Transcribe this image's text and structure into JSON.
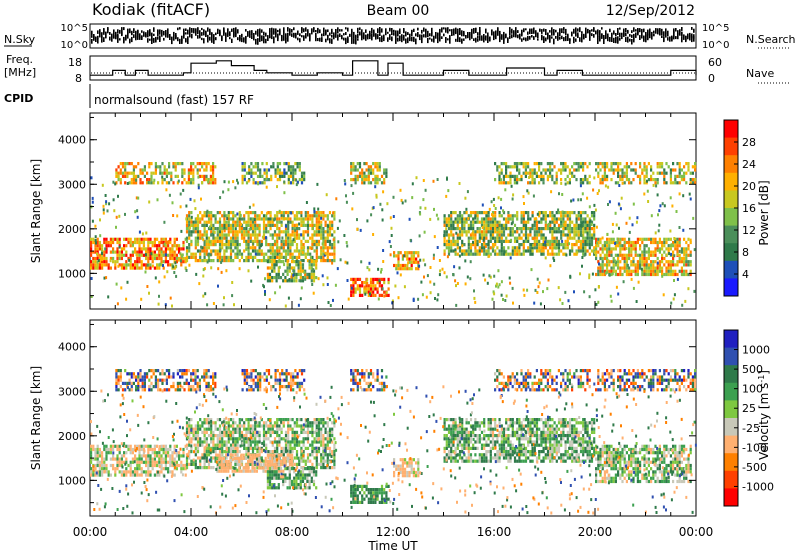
{
  "header": {
    "station": "Kodiak (fitACF)",
    "beam": "Beam 00",
    "date": "12/Sep/2012"
  },
  "left_labels": {
    "nsky": "N.Sky",
    "freq_line1": "Freq.",
    "freq_line2": "[MHz]",
    "cpid": "CPID"
  },
  "right_labels": {
    "nsearch": "N.Search",
    "nave": "Nave"
  },
  "strip_ticks": {
    "nsky_top": "10^5",
    "nsky_bottom": "10^0",
    "freq_top": "18",
    "freq_bottom": "8",
    "nave_top": "60",
    "nave_bottom": "0"
  },
  "cpid_text": "normalsound (fast) 157 RF",
  "colors": {
    "power": [
      "#1a1aff",
      "#1e4fb8",
      "#2f7a4a",
      "#4b8f5a",
      "#7fc04a",
      "#c8c820",
      "#ffb000",
      "#ff8000",
      "#ff4000",
      "#ff0000"
    ],
    "velocity": [
      "#ff0000",
      "#ff4000",
      "#ff8000",
      "#ffb070",
      "#c8c8b8",
      "#7ec840",
      "#3ca050",
      "#2f7a4a",
      "#3050b0",
      "#2020c0"
    ]
  },
  "chart_data": [
    {
      "type": "heatmap",
      "name": "power",
      "xlabel": "",
      "ylabel": "Slant Range [km]",
      "x_ticks": [
        "00:00",
        "04:00",
        "08:00",
        "12:00",
        "16:00",
        "20:00",
        "00:00"
      ],
      "y_ticks": [
        "1000",
        "2000",
        "3000",
        "4000"
      ],
      "ylim": [
        200,
        4600
      ],
      "colorbar_label": "Power [dB]",
      "colorbar_ticks": [
        "28",
        "24",
        "20",
        "16",
        "12",
        "8",
        "4"
      ],
      "colorbar_range": [
        0,
        30
      ],
      "x_unit": "hours UT",
      "regions": [
        {
          "t0": 0.0,
          "t1": 3.8,
          "r0": 1150,
          "r1": 1800,
          "v": 22
        },
        {
          "t0": 3.8,
          "t1": 9.7,
          "r0": 1300,
          "r1": 2400,
          "v": 16
        },
        {
          "t0": 7.0,
          "t1": 9.0,
          "r0": 800,
          "r1": 1300,
          "v": 14
        },
        {
          "t0": 10.3,
          "t1": 11.8,
          "r0": 500,
          "r1": 900,
          "v": 24
        },
        {
          "t0": 12.0,
          "t1": 13.0,
          "r0": 1100,
          "r1": 1500,
          "v": 20
        },
        {
          "t0": 14.0,
          "t1": 20.0,
          "r0": 1400,
          "r1": 2400,
          "v": 14
        },
        {
          "t0": 20.0,
          "t1": 23.8,
          "r0": 1000,
          "r1": 1800,
          "v": 18
        },
        {
          "t0": 1.0,
          "t1": 5.0,
          "r0": 3000,
          "r1": 3500,
          "v": 18
        },
        {
          "t0": 6.0,
          "t1": 8.5,
          "r0": 3000,
          "r1": 3500,
          "v": 12
        },
        {
          "t0": 10.3,
          "t1": 11.7,
          "r0": 3000,
          "r1": 3500,
          "v": 16
        },
        {
          "t0": 16.0,
          "t1": 19.8,
          "r0": 3000,
          "r1": 3500,
          "v": 14
        },
        {
          "t0": 20.0,
          "t1": 24.0,
          "r0": 3000,
          "r1": 3500,
          "v": 16
        }
      ]
    },
    {
      "type": "heatmap",
      "name": "velocity",
      "xlabel": "Time UT",
      "ylabel": "Slant Range [km]",
      "x_ticks": [
        "00:00",
        "04:00",
        "08:00",
        "12:00",
        "16:00",
        "20:00",
        "00:00"
      ],
      "y_ticks": [
        "1000",
        "2000",
        "3000",
        "4000"
      ],
      "ylim": [
        200,
        4600
      ],
      "colorbar_label": "Velocity [m s^-1]",
      "colorbar_ticks": [
        "1000",
        "500",
        "100",
        "25",
        "-25",
        "-100",
        "-500",
        "-1000"
      ],
      "x_unit": "hours UT",
      "regions": [
        {
          "t0": 0.0,
          "t1": 3.8,
          "r0": 1150,
          "r1": 1800,
          "v": -60
        },
        {
          "t0": 3.8,
          "t1": 9.7,
          "r0": 1300,
          "r1": 2400,
          "v": 0
        },
        {
          "t0": 5.0,
          "t1": 8.0,
          "r0": 1200,
          "r1": 1600,
          "v": -200
        },
        {
          "t0": 7.0,
          "t1": 9.0,
          "r0": 800,
          "r1": 1300,
          "v": 60
        },
        {
          "t0": 10.3,
          "t1": 11.8,
          "r0": 500,
          "r1": 900,
          "v": 150
        },
        {
          "t0": 12.0,
          "t1": 13.0,
          "r0": 1100,
          "r1": 1500,
          "v": -150
        },
        {
          "t0": 14.0,
          "t1": 20.0,
          "r0": 1400,
          "r1": 2400,
          "v": 40
        },
        {
          "t0": 20.0,
          "t1": 23.8,
          "r0": 1000,
          "r1": 1800,
          "v": 0
        },
        {
          "t0": 1.0,
          "t1": 5.0,
          "r0": 3000,
          "r1": 3500,
          "v": 0
        },
        {
          "t0": 6.0,
          "t1": 8.5,
          "r0": 3000,
          "r1": 3500,
          "v": 0
        },
        {
          "t0": 10.3,
          "t1": 11.7,
          "r0": 3000,
          "r1": 3500,
          "v": 0
        },
        {
          "t0": 16.0,
          "t1": 19.8,
          "r0": 3000,
          "r1": 3500,
          "v": 0
        },
        {
          "t0": 20.0,
          "t1": 24.0,
          "r0": 3000,
          "r1": 3500,
          "v": 0
        }
      ]
    }
  ],
  "freq_series": {
    "type": "line",
    "name": "frequency",
    "x_hours": [
      0,
      0.9,
      1.4,
      1.8,
      2.3,
      3.0,
      3.7,
      4.0,
      5.0,
      5.6,
      6.5,
      7.0,
      8.0,
      9.0,
      10.0,
      10.4,
      11.0,
      11.4,
      11.8,
      12.4,
      13.5,
      14.0,
      15.0,
      15.5,
      16.5,
      17.0,
      18.0,
      18.5,
      19.5,
      20.0,
      21.0,
      22.0,
      23.0,
      23.8,
      24.0
    ],
    "mhz": [
      10,
      12,
      10,
      12,
      10,
      10,
      11,
      15,
      16,
      14,
      12,
      11,
      10,
      11,
      10,
      16,
      16,
      10,
      15,
      10,
      10,
      12,
      10,
      10,
      13,
      13,
      10,
      12,
      10,
      10,
      10,
      10,
      12,
      12,
      10
    ],
    "ylim": [
      8,
      18
    ]
  }
}
